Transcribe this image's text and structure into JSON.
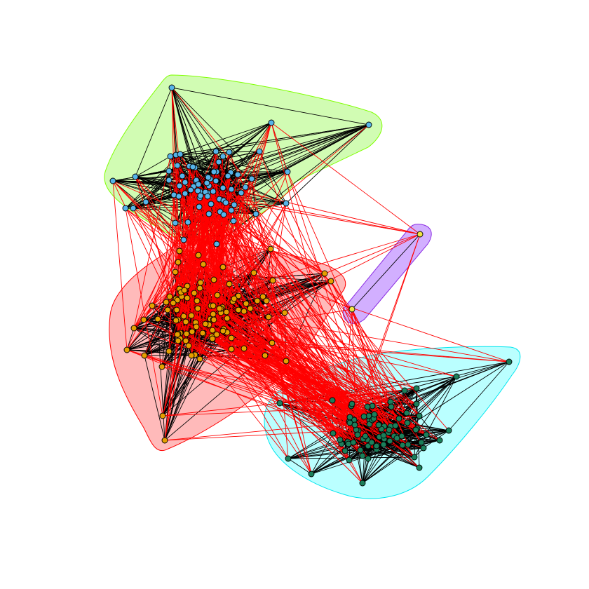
{
  "figure": {
    "type": "community-network-plot",
    "background": "#ffffff",
    "node_count": 262
  },
  "communities": [
    {
      "id": "blue",
      "node_color": "#56b4e9",
      "hull_fill": "#ccfcab",
      "hull_stroke": "#7fff00",
      "members": 75
    },
    {
      "id": "orange",
      "node_color": "#e69f00",
      "hull_fill": "#ffb3b3",
      "hull_stroke": "#ff0000",
      "members": 103
    },
    {
      "id": "green",
      "node_color": "#1b7f5a",
      "hull_fill": "#b3ffff",
      "hull_stroke": "#00e5ee",
      "members": 82
    },
    {
      "id": "yellow",
      "node_color": "#f0e442",
      "hull_fill": "#cda6ff",
      "hull_stroke": "#8a2be2",
      "members": 2
    }
  ],
  "edge_styles": {
    "intra_color": "#000000",
    "inter_color": "#ff0000"
  }
}
